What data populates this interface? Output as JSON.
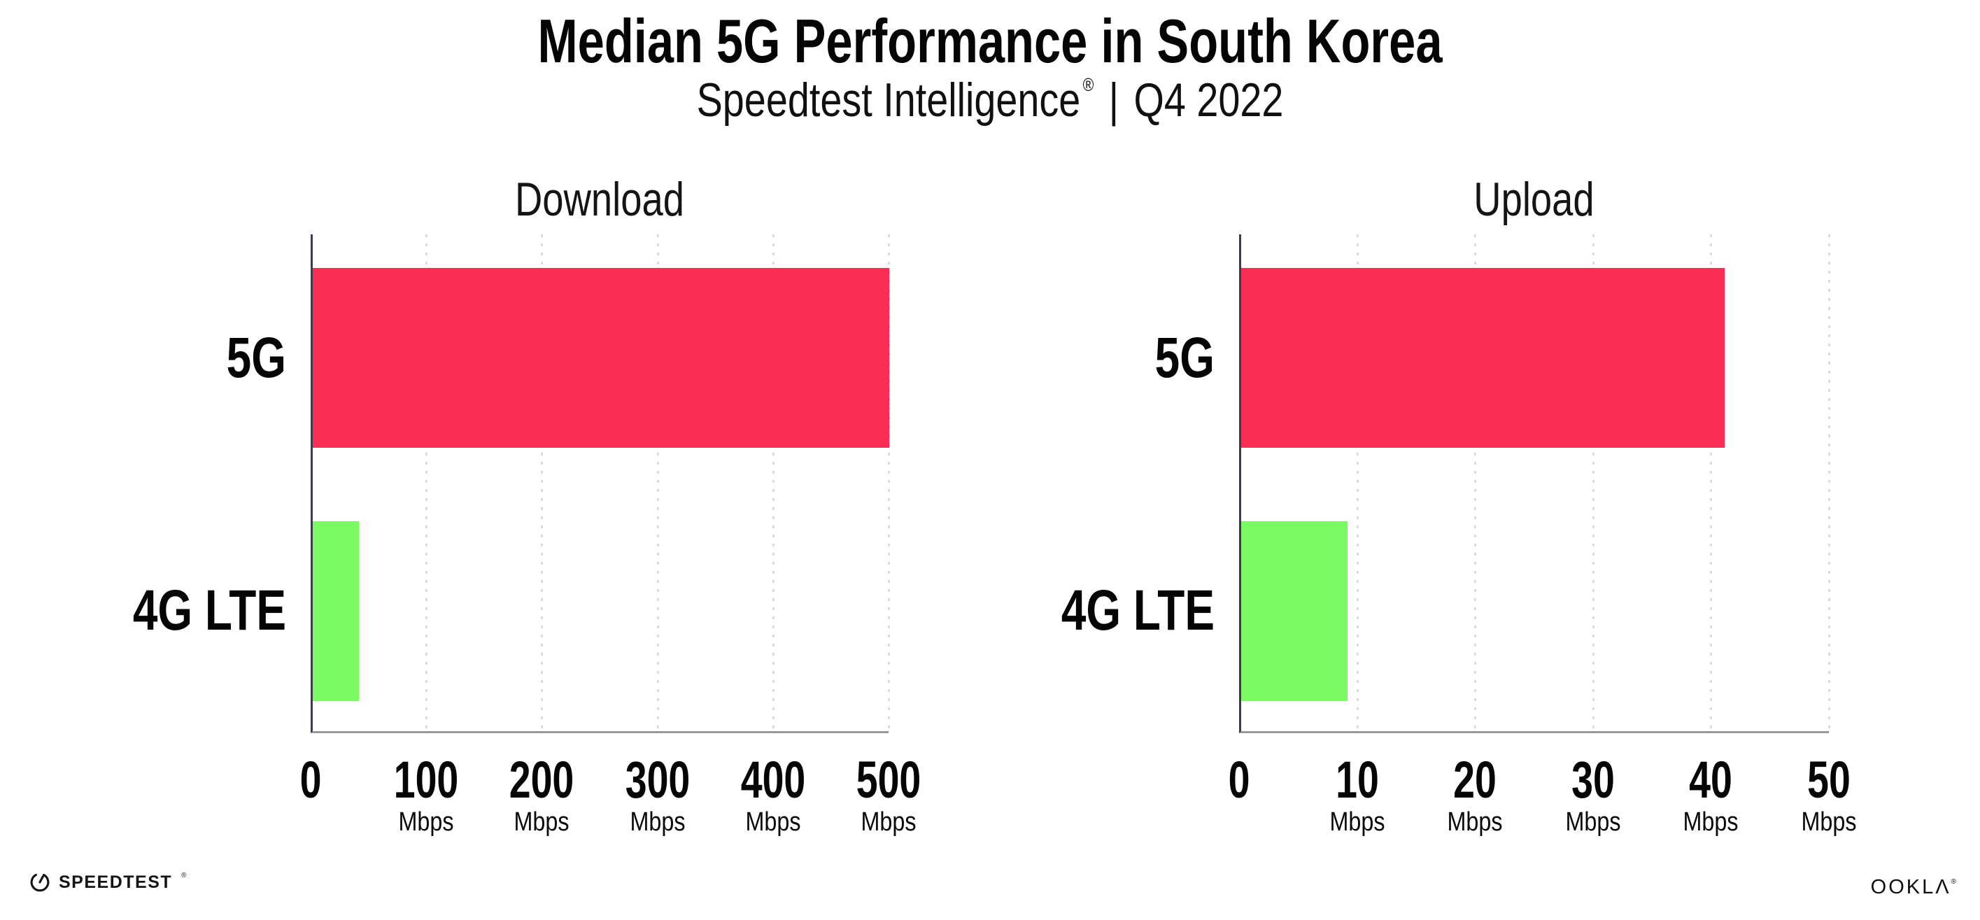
{
  "header": {
    "title": "Median 5G Performance in South Korea",
    "subtitle": {
      "brand": "Speedtest Intelligence",
      "registered_mark": "®",
      "separator": "|",
      "period": "Q4 2022"
    }
  },
  "chart_data": [
    {
      "type": "bar",
      "orientation": "horizontal",
      "title": "Download",
      "categories": [
        "5G",
        "4G LTE"
      ],
      "values": [
        499,
        40
      ],
      "unit": "Mbps",
      "xlabel": "",
      "ylabel": "",
      "xlim": [
        0,
        500
      ],
      "xticks": [
        0,
        100,
        200,
        300,
        400,
        500
      ],
      "bar_colors": [
        "#FC2D55",
        "#7CFA63"
      ],
      "grid": "vertical-dotted",
      "legend": "none"
    },
    {
      "type": "bar",
      "orientation": "horizontal",
      "title": "Upload",
      "categories": [
        "5G",
        "4G LTE"
      ],
      "values": [
        41,
        9
      ],
      "unit": "Mbps",
      "xlabel": "",
      "ylabel": "",
      "xlim": [
        0,
        50
      ],
      "xticks": [
        0,
        10,
        20,
        30,
        40,
        50
      ],
      "bar_colors": [
        "#FC2D55",
        "#7CFA63"
      ],
      "grid": "vertical-dotted",
      "legend": "none"
    }
  ],
  "colors": {
    "background": "#FFFFFF",
    "text": "#0E0E0E",
    "bar_5g": "#FC2D55",
    "bar_4g_lte": "#7CFA63",
    "axis_left": "#3E3A4E",
    "axis_bottom": "#97979F",
    "gridline": "#D9D9E3"
  },
  "footer": {
    "speedtest_label": "SPEEDTEST",
    "speedtest_mark": "®",
    "ookla_label": "OOKLΛ",
    "ookla_mark": "®"
  }
}
